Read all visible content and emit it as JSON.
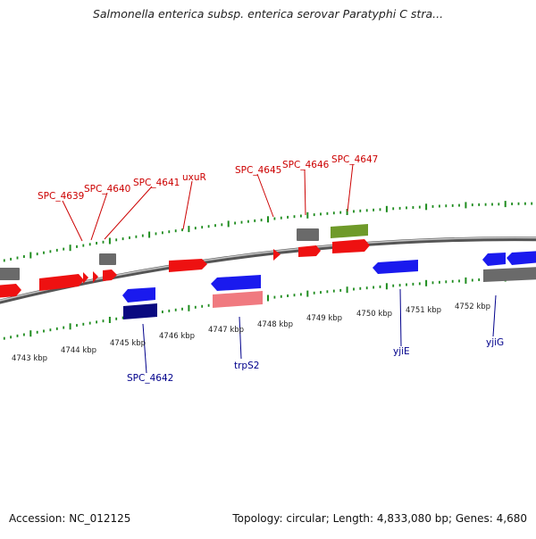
{
  "header": {
    "title": "Salmonella enterica subsp. enterica serovar Paratyphi C stra..."
  },
  "footer": {
    "accession": "Accession: NC_012125",
    "topology": "Topology: circular; Length: 4,833,080 bp; Genes: 4,680"
  },
  "colors": {
    "forward_cds": "#ee1111",
    "reverse_cds": "#1a1aee",
    "dark_reverse": "#0a0a80",
    "pink": "#f07a80",
    "gray_gene": "#6a6a6a",
    "green_gene": "#6f9a2a",
    "ticks": "#1e8c1e",
    "forward_label": "#cc0000",
    "reverse_label": "#00008b"
  },
  "scale": {
    "kbp_labels": [
      "4743 kbp",
      "4744 kbp",
      "4745 kbp",
      "4746 kbp",
      "4747 kbp",
      "4748 kbp",
      "4749 kbp",
      "4750 kbp",
      "4751 kbp",
      "4752 kbp"
    ]
  },
  "genes": {
    "labeled": [
      {
        "name": "SPC_4639",
        "strand": "forward"
      },
      {
        "name": "SPC_4640",
        "strand": "forward"
      },
      {
        "name": "SPC_4641",
        "strand": "forward"
      },
      {
        "name": "uxuR",
        "strand": "forward"
      },
      {
        "name": "SPC_4645",
        "strand": "forward"
      },
      {
        "name": "SPC_4646",
        "strand": "forward"
      },
      {
        "name": "SPC_4647",
        "strand": "forward"
      },
      {
        "name": "SPC_4642",
        "strand": "reverse"
      },
      {
        "name": "trpS2",
        "strand": "reverse"
      },
      {
        "name": "yjiE",
        "strand": "reverse"
      },
      {
        "name": "yjiG",
        "strand": "reverse"
      }
    ]
  }
}
